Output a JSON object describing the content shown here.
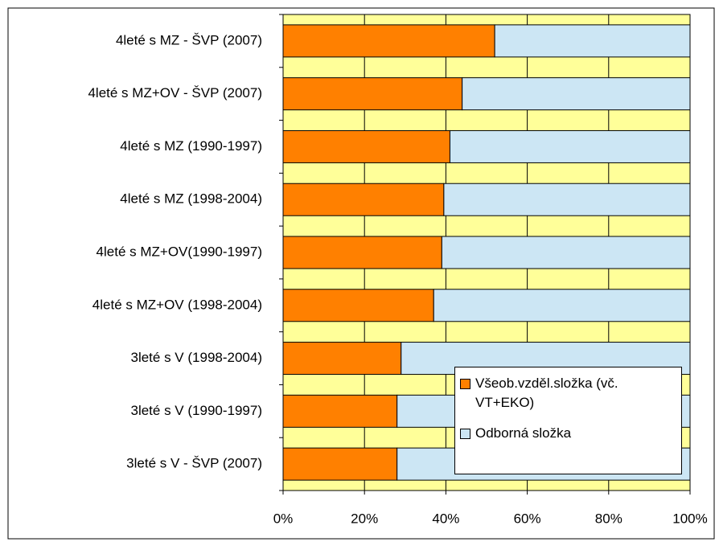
{
  "chart_data": {
    "type": "bar",
    "orientation": "horizontal",
    "stacked": "percent",
    "categories": [
      "4leté s MZ - ŠVP (2007)",
      "4leté s MZ+OV - ŠVP (2007)",
      "4leté s MZ (1990-1997)",
      "4leté s MZ (1998-2004)",
      "4leté s MZ+OV(1990-1997)",
      "4leté s MZ+OV (1998-2004)",
      "3leté s V (1998-2004)",
      "3leté s V (1990-1997)",
      "3leté s V - ŠVP (2007)"
    ],
    "series": [
      {
        "name": "Všeob.vzděl.složka (vč. VT+EKO)",
        "color": "#ff8000",
        "values": [
          52,
          44,
          41,
          39.5,
          39,
          37,
          29,
          28,
          28
        ]
      },
      {
        "name": "Odborná složka",
        "color": "#cce6f4",
        "values": [
          48,
          56,
          59,
          60.5,
          61,
          63,
          71,
          72,
          72
        ]
      }
    ],
    "xlim": [
      0,
      100
    ],
    "xticks": [
      {
        "value": 0,
        "label": "0%"
      },
      {
        "value": 20,
        "label": "20%"
      },
      {
        "value": 40,
        "label": "40%"
      },
      {
        "value": 60,
        "label": "60%"
      },
      {
        "value": 80,
        "label": "80%"
      },
      {
        "value": 100,
        "label": "100%"
      }
    ],
    "grid": true,
    "plot_background": "#ffff99"
  }
}
